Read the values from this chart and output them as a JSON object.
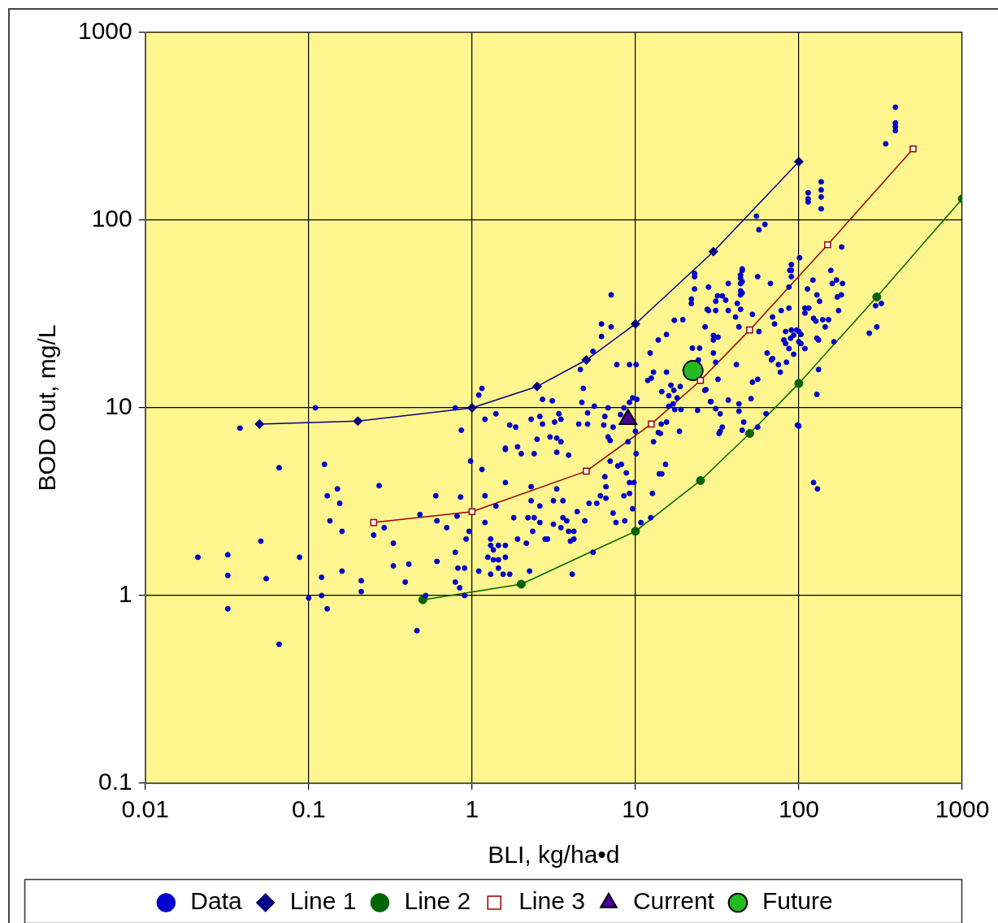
{
  "chart_data": {
    "type": "scatter",
    "xlabel": "BLI, kg/ha•d",
    "ylabel": "BOD Out, mg/L",
    "log": "xy",
    "grid": true,
    "legend": "bottom",
    "xlim": [
      0.01,
      1000
    ],
    "xticks": [
      0.01,
      0.1,
      1,
      10,
      100,
      1000
    ],
    "ylim": [
      0.1,
      1000
    ],
    "yticks": [
      0.1,
      1,
      10,
      100,
      1000
    ],
    "series": [
      {
        "name": "Data",
        "type": "scatter",
        "marker": "circle",
        "color": "#0000cc",
        "x": [
          0.021,
          0.032,
          0.032,
          0.032,
          0.038,
          0.051,
          0.055,
          0.066,
          0.066,
          0.088,
          0.1,
          0.11,
          0.12,
          0.12,
          0.125,
          0.13,
          0.13,
          0.135,
          0.15,
          0.155,
          0.16,
          0.16,
          0.21,
          0.21,
          0.27,
          0.29,
          0.25,
          0.33,
          0.33,
          0.41,
          0.39,
          0.46,
          0.61,
          0.6,
          0.48,
          0.61,
          0.7,
          0.79,
          0.82,
          0.79,
          0.84,
          0.85,
          0.81,
          0.92,
          0.96,
          0.9,
          0.9,
          0.52,
          0.79,
          0.86,
          0.98,
          7.1,
          6.2,
          7.1,
          6.2,
          5.5,
          4.6,
          4.8,
          7.7,
          9.2,
          10.1,
          4.7,
          5.1,
          5.6,
          6.8,
          8.5,
          9.6,
          10.2,
          9.2,
          6.5,
          8.1,
          5.1,
          4.5,
          6.4,
          7.3,
          6.8,
          7,
          9,
          10,
          10.1,
          7,
          7.8,
          8.2,
          8.8,
          9.2,
          9.8,
          9.2,
          8.5,
          9.6,
          8.6,
          7.6,
          7.3,
          6.6,
          6.6,
          6.1,
          6.5,
          5.8,
          5.2,
          4.9,
          4.4,
          4.2,
          4.2,
          4,
          4.1,
          5.5,
          3.6,
          3.15,
          3.3,
          3.9,
          3.5,
          3.3,
          3,
          3.3,
          3.5,
          3.4,
          3.2,
          3.1,
          2.7,
          2.6,
          2.7,
          2.3,
          2.5,
          2.4,
          2,
          1.9,
          1.6,
          1.6,
          1.85,
          1.7,
          1.4,
          1.2,
          1.15,
          1.1,
          1.15,
          1.2,
          1.4,
          1.6,
          2.3,
          2.6,
          2.3,
          2.2,
          2.4,
          2.6,
          2.35,
          2.8,
          2.9,
          3.15,
          3.6,
          3.8,
          3.5,
          3.9,
          2.15,
          1.9,
          1.8,
          2.25,
          1.7,
          1.55,
          1.45,
          1.6,
          1.6,
          1.45,
          1.3,
          1.35,
          1.3,
          1.25,
          1.35,
          1.45,
          1.3,
          1.2,
          1.1,
          12.4,
          12.7,
          10.8,
          14,
          14.5,
          15.3,
          18.6,
          12.9,
          13.8,
          14.2,
          14.4,
          15.5,
          19,
          17.4,
          24,
          16,
          17,
          18,
          16,
          17.2,
          16.5,
          14.5,
          18.8,
          26.6,
          28.8,
          11.9,
          12.5,
          12.9,
          15.5,
          12.3,
          13.8,
          15.5,
          17.3,
          19.5,
          22.3,
          24.7,
          24.3,
          26.7,
          27.5,
          28,
          23,
          22,
          22,
          23,
          23,
          55,
          62,
          57,
          114,
          114,
          114,
          137,
          137,
          137,
          137,
          390,
          390,
          390,
          390,
          340,
          183,
          270,
          300,
          295,
          320,
          37,
          31.8,
          34,
          35.7,
          31,
          45,
          45,
          44,
          44,
          44,
          45,
          44,
          44,
          45,
          42,
          44,
          56,
          67,
          52,
          41,
          37,
          31,
          28,
          43,
          57,
          69,
          71,
          78,
          87,
          90,
          88,
          90,
          90,
          87,
          101,
          122,
          113,
          129,
          134,
          109,
          115,
          109,
          157,
          170,
          185,
          160,
          182,
          172,
          175,
          123,
          127,
          140,
          152,
          145,
          83,
          90,
          97,
          100,
          103,
          93,
          89,
          81,
          83,
          87,
          93,
          100,
          103,
          109,
          129,
          132,
          164,
          132,
          129,
          123,
          130,
          64,
          69,
          68,
          75,
          84,
          77,
          41.5,
          32,
          56,
          52,
          51,
          43,
          43,
          37,
          31,
          33,
          29,
          27,
          63,
          46,
          56,
          45,
          34,
          33,
          32.5,
          98,
          30,
          30,
          30,
          32,
          31,
          100
        ],
        "values": [
          1.6,
          1.65,
          1.28,
          0.85,
          7.8,
          1.95,
          1.23,
          4.8,
          0.55,
          1.6,
          0.97,
          10,
          1,
          1.25,
          5,
          3.4,
          0.85,
          2.5,
          3.7,
          3.1,
          2.2,
          1.35,
          1.2,
          1.05,
          3.85,
          2.3,
          2.1,
          1.9,
          1.44,
          1.47,
          1.18,
          0.65,
          1.52,
          3.4,
          2.7,
          2.5,
          2.3,
          1.7,
          1.4,
          1.18,
          1.1,
          3.35,
          2.65,
          2,
          2.2,
          1.4,
          1,
          1,
          10,
          7.6,
          5.2,
          40,
          28,
          27,
          24,
          20,
          16,
          12.7,
          17,
          17,
          17,
          10.7,
          9.4,
          10.2,
          10,
          10,
          11.3,
          11.1,
          10.7,
          9,
          9.2,
          8.2,
          8.2,
          8.1,
          7.9,
          7,
          6.7,
          6.6,
          7.5,
          5.7,
          5.2,
          4.9,
          5,
          4.5,
          4,
          4,
          3.5,
          3.4,
          2.9,
          2.5,
          2.45,
          2.75,
          3.8,
          3.3,
          3.4,
          4.3,
          3.1,
          3.1,
          2.5,
          2.8,
          2.2,
          2,
          1.95,
          1.3,
          1.7,
          3.2,
          3.2,
          3.7,
          5.6,
          6.6,
          6.9,
          7,
          5.8,
          8.7,
          9.3,
          8.4,
          10.9,
          11.1,
          9,
          8.2,
          8.7,
          6.8,
          5.7,
          5.7,
          6.2,
          6.1,
          6,
          7.9,
          8.1,
          9.3,
          8.7,
          12.7,
          11.7,
          4.7,
          3.4,
          3,
          4,
          3.8,
          3,
          3.2,
          2.6,
          2.6,
          2.45,
          2.2,
          2,
          2,
          2.4,
          2.6,
          2.5,
          2.3,
          2.2,
          1.9,
          2,
          2.6,
          1.35,
          1.3,
          1.3,
          1.4,
          1.6,
          1.85,
          1.85,
          1.85,
          1.75,
          2,
          1.6,
          1.55,
          1.55,
          1.3,
          2.45,
          1.35,
          2.6,
          3.5,
          2.45,
          4.45,
          4.45,
          5,
          7.5,
          6.6,
          7.4,
          7.3,
          8.2,
          8.4,
          9.8,
          9.8,
          9.7,
          10.2,
          10.5,
          11.3,
          11.6,
          12.4,
          13.2,
          12.2,
          13,
          12.4,
          10.8,
          14,
          14.4,
          15.5,
          15.5,
          19.6,
          23,
          24.6,
          29.3,
          29.5,
          20.8,
          20.8,
          18,
          27,
          33.5,
          44,
          43,
          38,
          36,
          50,
          52,
          105,
          95,
          89,
          140,
          130,
          125,
          145,
          133,
          115,
          160,
          400,
          330,
          315,
          300,
          255,
          72,
          25,
          27,
          35,
          36,
          46,
          39.5,
          39.5,
          37.5,
          37,
          55,
          54,
          51,
          49,
          46,
          47,
          42,
          40,
          41,
          36,
          33.5,
          50,
          46,
          31.5,
          30.5,
          33,
          33,
          33,
          27,
          25.5,
          30.5,
          28,
          33,
          34,
          58,
          54,
          54,
          50,
          44,
          63,
          48,
          43,
          40,
          37,
          34,
          34,
          32,
          54,
          48,
          46,
          46,
          40,
          39,
          33,
          30,
          29,
          29.5,
          29.5,
          27,
          25.5,
          26,
          26,
          25.5,
          24.6,
          24.4,
          23.5,
          23,
          22,
          20.7,
          19.3,
          22.5,
          22,
          20.7,
          23.5,
          23,
          22.5,
          16,
          11.8,
          4,
          3.7,
          19.6,
          18.3,
          18,
          17,
          17.5,
          15.5,
          17,
          14.2,
          14.2,
          13.7,
          11.2,
          10.5,
          9.6,
          11,
          9.9,
          9.3,
          10.8,
          12.5,
          9.3,
          8.4,
          7.9,
          7.6,
          7.9,
          7.5,
          7.3,
          8.1,
          19.6,
          23,
          24.3,
          23.8,
          17.5,
          8
        ]
      },
      {
        "name": "Line 1",
        "type": "line",
        "marker": "diamond",
        "color": "#000080",
        "x": [
          0.05,
          0.2,
          1,
          2.5,
          5,
          10,
          30,
          100
        ],
        "values": [
          8.2,
          8.5,
          10,
          13,
          18,
          28,
          68,
          205
        ]
      },
      {
        "name": "Line 2",
        "type": "line",
        "marker": "circle",
        "color": "#006400",
        "x": [
          0.5,
          2,
          10,
          25,
          50,
          100,
          300,
          1000
        ],
        "values": [
          0.95,
          1.15,
          2.2,
          4.1,
          7.3,
          13.5,
          39,
          130
        ]
      },
      {
        "name": "Line 3",
        "type": "line",
        "marker": "square",
        "color": "#990000",
        "x": [
          0.25,
          1,
          5,
          12.5,
          25,
          50,
          150,
          500
        ],
        "values": [
          2.45,
          2.8,
          4.6,
          8.2,
          14,
          26,
          74,
          240
        ]
      },
      {
        "name": "Current",
        "type": "scatter",
        "marker": "triangle",
        "color": "#4b0098",
        "x": [
          9
        ],
        "values": [
          8.7
        ]
      },
      {
        "name": "Future",
        "type": "scatter",
        "marker": "circle",
        "color": "#22bb22",
        "x": [
          22.5
        ],
        "values": [
          15.8
        ]
      }
    ]
  }
}
